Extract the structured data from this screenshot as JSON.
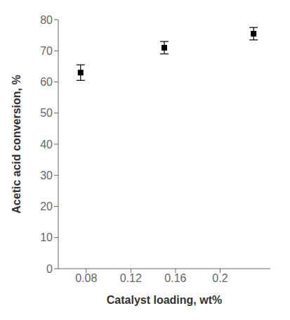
{
  "chart_data": {
    "type": "scatter",
    "x": [
      0.075,
      0.15,
      0.23
    ],
    "values": [
      63.0,
      71.0,
      75.5
    ],
    "yerr": [
      2.5,
      2.0,
      2.0
    ],
    "xlabel": "Catalyst loading, wt%",
    "ylabel": "Acetic acid conversion, %",
    "xlim": [
      0.055,
      0.245
    ],
    "ylim": [
      0,
      80
    ],
    "xticks": [
      0.08,
      0.12,
      0.16,
      0.2
    ],
    "yticks": [
      0,
      10,
      20,
      30,
      40,
      50,
      60,
      70,
      80
    ],
    "color": "black",
    "marker": "square",
    "grid": false
  }
}
